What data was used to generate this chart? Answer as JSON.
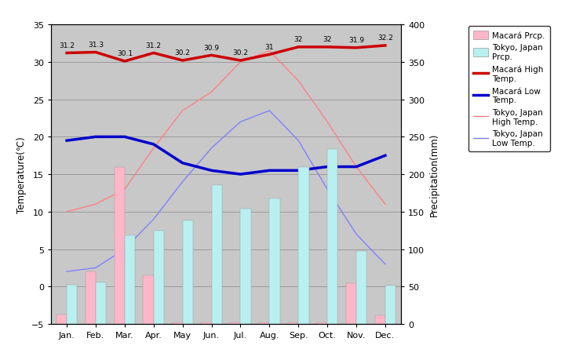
{
  "months": [
    "Jan.",
    "Feb.",
    "Mar.",
    "Apr.",
    "May",
    "Jun.",
    "Jul.",
    "Aug.",
    "Sep.",
    "Oct.",
    "Nov.",
    "Dec."
  ],
  "macara_high": [
    31.2,
    31.3,
    30.1,
    31.2,
    30.2,
    30.9,
    30.2,
    31,
    32,
    32,
    31.9,
    32.2
  ],
  "macara_low": [
    19.5,
    20.0,
    20.0,
    19.0,
    16.5,
    15.5,
    15.0,
    15.5,
    15.5,
    16.0,
    16.0,
    17.5
  ],
  "tokyo_high": [
    10.0,
    11.0,
    13.0,
    18.5,
    23.5,
    26.0,
    30.0,
    31.5,
    27.5,
    22.0,
    16.0,
    11.0
  ],
  "tokyo_low": [
    2.0,
    2.5,
    5.0,
    9.0,
    14.0,
    18.5,
    22.0,
    23.5,
    19.5,
    13.0,
    7.0,
    3.0
  ],
  "macara_prcp": [
    13,
    70,
    210,
    65,
    2,
    2,
    2,
    2,
    2,
    2,
    55,
    12
  ],
  "tokyo_prcp": [
    52,
    56,
    118,
    125,
    138,
    185,
    154,
    168,
    210,
    234,
    97,
    51
  ],
  "macara_high_labels": [
    "31.2",
    "31.3",
    "30.1",
    "31.2",
    "30.2",
    "30.9",
    "30.2",
    "31",
    "32",
    "32",
    "31.9",
    "32.2"
  ],
  "bg_color": "#c8c8c8",
  "bar_macara_color": "#ffb6c8",
  "bar_tokyo_color": "#b8f0f0",
  "line_macara_high_color": "#cc0000",
  "line_macara_low_color": "#0000cc",
  "line_tokyo_high_color": "#ff8080",
  "line_tokyo_low_color": "#8080ff",
  "temp_ylim": [
    -5,
    35
  ],
  "prcp_ylim": [
    0,
    400
  ],
  "temp_yticks": [
    -5,
    0,
    5,
    10,
    15,
    20,
    25,
    30,
    35
  ],
  "prcp_yticks": [
    0,
    50,
    100,
    150,
    200,
    250,
    300,
    350,
    400
  ],
  "ylabel_left": "Temperature(℃)",
  "ylabel_right": "Precipitation(mm)",
  "grid_color": "#888888",
  "legend_labels": [
    "Macará Prcp.",
    "Tokyo, Japan\nPrcp.",
    "Macará High\nTemp.",
    "Macará Low\nTemp.",
    "Tokyo, Japan\nHigh Temp.",
    "Tokyo, Japan\nLow Temp."
  ]
}
